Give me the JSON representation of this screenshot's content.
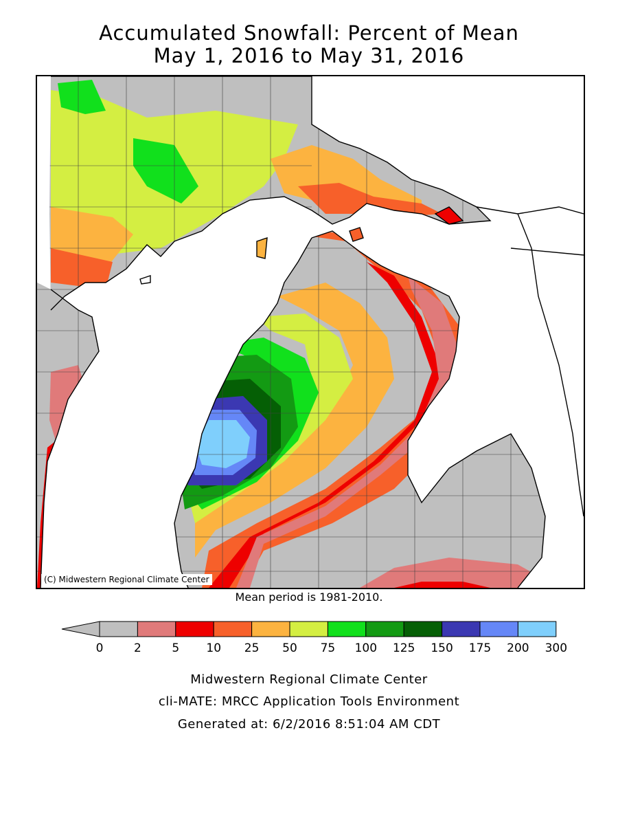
{
  "title_line1": "Accumulated Snowfall: Percent of Mean",
  "title_line2": "May 1, 2016 to May 31, 2016",
  "copyright": "(C) Midwestern Regional Climate Center",
  "mean_note": "Mean period is 1981-2010.",
  "legend": {
    "ticks": [
      "0",
      "2",
      "5",
      "10",
      "25",
      "50",
      "75",
      "100",
      "125",
      "150",
      "175",
      "200",
      "300"
    ],
    "bins": [
      {
        "range": "0-2",
        "color": "#bfbfbf"
      },
      {
        "range": "2-5",
        "color": "#e07a7a"
      },
      {
        "range": "5-10",
        "color": "#ee0000"
      },
      {
        "range": "10-25",
        "color": "#f7602a"
      },
      {
        "range": "25-50",
        "color": "#fcb340"
      },
      {
        "range": "50-75",
        "color": "#d4ee42"
      },
      {
        "range": "75-100",
        "color": "#11e01c"
      },
      {
        "range": "100-125",
        "color": "#139a13"
      },
      {
        "range": "125-150",
        "color": "#055f05"
      },
      {
        "range": "150-175",
        "color": "#3b38b2"
      },
      {
        "range": "175-200",
        "color": "#6587f7"
      },
      {
        "range": "200-300",
        "color": "#7fcffc"
      }
    ],
    "below_range_color": "#bfbfbf"
  },
  "footer": {
    "line1": "Midwestern Regional Climate Center",
    "line2": "cli-MATE: MRCC Application Tools Environment",
    "line3": "Generated at: 6/2/2016 8:51:04 AM CDT"
  },
  "colors": {
    "water": "#ffffff",
    "outline": "#000000",
    "county_lines": "#404040"
  }
}
